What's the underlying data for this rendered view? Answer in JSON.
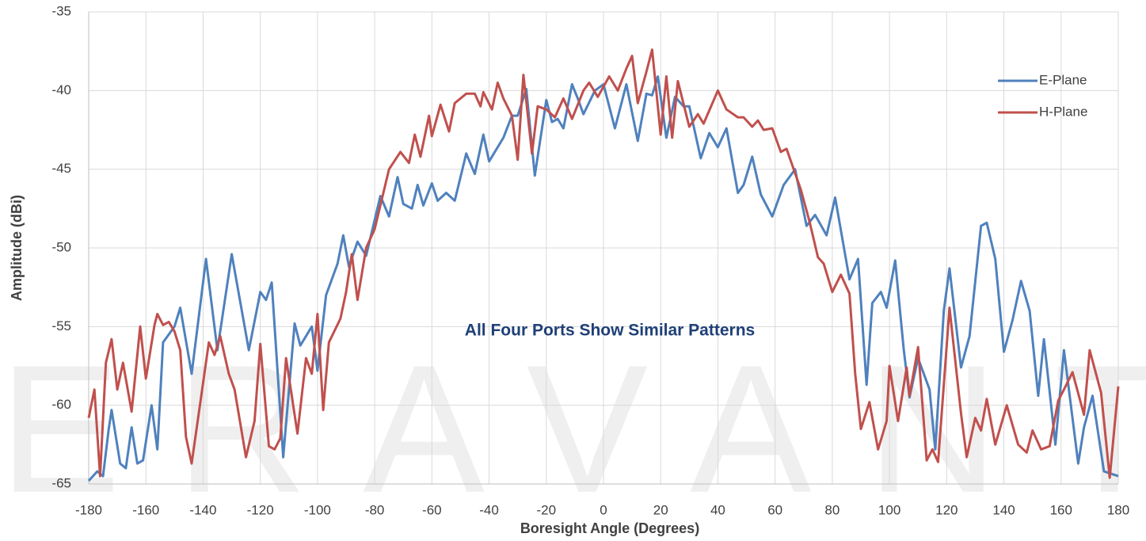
{
  "chart_data": {
    "type": "line",
    "watermark": "ERAVANT",
    "xlabel": "Boresight Angle (Degrees)",
    "ylabel": "Amplitude (dBi)",
    "annotation": "All Four Ports Show Similar Patterns",
    "xlim": [
      -180,
      180
    ],
    "ylim": [
      -65,
      -35
    ],
    "xticks": [
      -180,
      -160,
      -140,
      -120,
      -100,
      -80,
      -60,
      -40,
      -20,
      0,
      20,
      40,
      60,
      80,
      100,
      120,
      140,
      160,
      180
    ],
    "yticks": [
      -65,
      -60,
      -55,
      -50,
      -45,
      -40,
      -35
    ],
    "grid": true,
    "legend": "upper right",
    "series": [
      {
        "name": "E-Plane",
        "color": "#4f81bd",
        "x": [
          -180,
          -177,
          -175,
          -173,
          -172,
          -169,
          -167,
          -165,
          -163,
          -161,
          -158,
          -156,
          -154,
          -150,
          -148,
          -144,
          -139,
          -135,
          -130,
          -124,
          -120,
          -118,
          -116,
          -112,
          -108,
          -106,
          -102,
          -100,
          -97,
          -93,
          -91,
          -89,
          -86,
          -83,
          -78,
          -75,
          -72,
          -70,
          -67,
          -65,
          -63,
          -60,
          -58,
          -55,
          -52,
          -48,
          -45,
          -42,
          -40,
          -35,
          -32,
          -30,
          -27,
          -24,
          -20,
          -18,
          -16,
          -14,
          -11,
          -9,
          -7,
          -3,
          0,
          4,
          8,
          12,
          15,
          17,
          19,
          22,
          25,
          28,
          30,
          34,
          37,
          40,
          43,
          47,
          49,
          52,
          55,
          59,
          63,
          67,
          71,
          74,
          78,
          81,
          86,
          89,
          92,
          94,
          97,
          99,
          102,
          105,
          107,
          110,
          114,
          116,
          119,
          121,
          125,
          128,
          132,
          134,
          137,
          140,
          143,
          146,
          149,
          152,
          154,
          158,
          161,
          166,
          168,
          171,
          175,
          180
        ],
        "values": [
          -64.8,
          -64.2,
          -64.5,
          -61.5,
          -60.3,
          -63.7,
          -64,
          -61.4,
          -63.7,
          -63.5,
          -60,
          -62.8,
          -56,
          -55,
          -53.8,
          -58,
          -50.7,
          -56.5,
          -50.4,
          -56.5,
          -52.8,
          -53.3,
          -52.2,
          -63.3,
          -54.8,
          -56.2,
          -55,
          -57.8,
          -53,
          -51,
          -49.2,
          -51.2,
          -49.6,
          -50.5,
          -46.7,
          -48,
          -45.5,
          -47.2,
          -47.5,
          -46,
          -47.3,
          -45.9,
          -47,
          -46.5,
          -47,
          -44,
          -45.3,
          -42.8,
          -44.5,
          -43,
          -41.6,
          -41.6,
          -39.9,
          -45.4,
          -40.6,
          -42,
          -41.8,
          -42.4,
          -39.6,
          -40.5,
          -41.5,
          -40,
          -39.6,
          -42.4,
          -39.6,
          -43.2,
          -40.2,
          -40.3,
          -39.1,
          -43,
          -40.4,
          -41,
          -41,
          -44.3,
          -42.7,
          -43.6,
          -42.4,
          -46.5,
          -46,
          -44.2,
          -46.6,
          -48,
          -46,
          -45,
          -48.6,
          -47.9,
          -49.2,
          -46.8,
          -52,
          -50.7,
          -58.7,
          -53.5,
          -52.8,
          -53.8,
          -50.8,
          -56.5,
          -59.5,
          -57,
          -59,
          -62.8,
          -54,
          -51.3,
          -57.6,
          -55.6,
          -48.6,
          -48.4,
          -50.7,
          -56.6,
          -54.6,
          -52.1,
          -54,
          -59.4,
          -55.8,
          -62.5,
          -56.5,
          -63.7,
          -61.4,
          -59.4,
          -64.2,
          -64.5
        ]
      },
      {
        "name": "H-Plane",
        "color": "#c0504d",
        "x": [
          -180,
          -178,
          -176,
          -174,
          -172,
          -170,
          -168,
          -165,
          -162,
          -160,
          -157,
          -156,
          -154,
          -152,
          -150,
          -148,
          -146,
          -144,
          -138,
          -136,
          -134,
          -131,
          -129,
          -125,
          -122,
          -120,
          -117,
          -115,
          -113,
          -111,
          -107,
          -104,
          -102,
          -100,
          -98,
          -96,
          -92,
          -90,
          -88,
          -86,
          -83,
          -80,
          -75,
          -71,
          -68,
          -66,
          -64,
          -61,
          -60,
          -57,
          -54,
          -52,
          -48,
          -45,
          -43,
          -42,
          -39,
          -37,
          -35,
          -32,
          -30,
          -28,
          -25,
          -23,
          -20,
          -17,
          -14,
          -11,
          -7,
          -5,
          -2,
          2,
          5,
          8,
          10,
          12,
          15,
          17,
          20,
          22,
          24,
          26,
          30,
          33,
          35,
          40,
          43,
          47,
          49,
          52,
          54,
          56,
          59,
          62,
          64,
          69,
          72,
          75,
          77,
          80,
          83,
          86,
          88,
          90,
          93,
          96,
          99,
          100,
          103,
          106,
          107,
          110,
          113,
          115,
          117,
          121,
          125,
          127,
          130,
          132,
          134,
          137,
          141,
          145,
          148,
          150,
          153,
          156,
          159,
          161,
          164,
          168,
          170,
          174,
          177,
          180
        ],
        "values": [
          -60.8,
          -59,
          -64.5,
          -57.3,
          -55.8,
          -59,
          -57.3,
          -60.4,
          -55,
          -58.3,
          -54.9,
          -54.2,
          -54.9,
          -54.7,
          -55.3,
          -56.5,
          -62,
          -63.7,
          -56,
          -56.8,
          -55.6,
          -58,
          -59,
          -63.3,
          -61,
          -56.1,
          -62.6,
          -62.8,
          -62.1,
          -57,
          -61.8,
          -57,
          -58,
          -54.2,
          -60.3,
          -56,
          -54.5,
          -52.8,
          -50.4,
          -53.3,
          -50,
          -48.8,
          -45,
          -43.9,
          -44.6,
          -42.8,
          -44.2,
          -41.6,
          -42.9,
          -40.9,
          -42.6,
          -40.8,
          -40.2,
          -40.2,
          -41,
          -40.1,
          -41.2,
          -39.5,
          -40.5,
          -41.6,
          -44.4,
          -39,
          -44,
          -41,
          -41.2,
          -41.7,
          -40.5,
          -41.8,
          -40,
          -39.5,
          -40.4,
          -39.1,
          -40,
          -38.6,
          -37.8,
          -40.8,
          -38.8,
          -37.4,
          -42.8,
          -39.1,
          -43,
          -39.4,
          -42.3,
          -41.5,
          -42.1,
          -40,
          -41.2,
          -41.7,
          -41.7,
          -42.3,
          -41.9,
          -42.5,
          -42.4,
          -43.9,
          -43.7,
          -46.3,
          -48.3,
          -50.6,
          -51,
          -52.8,
          -51.7,
          -52.9,
          -58,
          -61.5,
          -59.8,
          -62.8,
          -61,
          -57.5,
          -61,
          -57.6,
          -59.4,
          -56.3,
          -63.5,
          -62.8,
          -63.6,
          -53.8,
          -60.5,
          -63.3,
          -60.8,
          -61.6,
          -59.6,
          -62.5,
          -60,
          -62.5,
          -63,
          -61.6,
          -62.8,
          -62.6,
          -59.7,
          -59,
          -57.9,
          -60.6,
          -56.5,
          -59.2,
          -64.6,
          -58.8
        ]
      }
    ]
  }
}
